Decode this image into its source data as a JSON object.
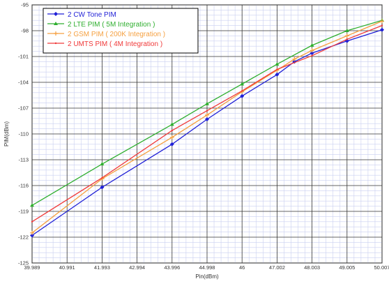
{
  "chart_data": {
    "type": "line",
    "title": "",
    "xlabel": "Pin(dBm)",
    "ylabel": "PIM(dBm)",
    "xlim": [
      39.989,
      50.007
    ],
    "ylim": [
      -125,
      -95
    ],
    "x_tick_labels": [
      "39.989",
      "40.991",
      "41.993",
      "42.994",
      "43.996",
      "44.998",
      "46",
      "47.002",
      "48.003",
      "49.005",
      "50.007"
    ],
    "y_tick_labels": [
      "-95",
      "-98",
      "-101",
      "-104",
      "-107",
      "-110",
      "-113",
      "-116",
      "-119",
      "-122",
      "-125"
    ],
    "grid": true,
    "legend_position": "top-left",
    "series": [
      {
        "name": "2 CW Tone PIM",
        "color": "#1f1fd6",
        "marker": "diamond",
        "x": [
          39.989,
          41.993,
          43.996,
          44.998,
          46,
          47.002,
          47.5,
          48.003,
          49.005,
          50.007
        ],
        "y": [
          -121.8,
          -116.2,
          -111.2,
          -108.3,
          -105.6,
          -103.1,
          -101.6,
          -100.6,
          -99.2,
          -97.9
        ]
      },
      {
        "name": "2 LTE PIM ( 5M Integration )",
        "color": "#2eae2e",
        "marker": "triangle",
        "x": [
          39.989,
          41.993,
          43.996,
          44.998,
          46,
          47.002,
          48.003,
          49.005,
          50.007
        ],
        "y": [
          -118.3,
          -113.5,
          -108.9,
          -106.5,
          -104.2,
          -101.9,
          -99.7,
          -98.0,
          -96.8
        ]
      },
      {
        "name": "2 GSM PIM ( 200K Integration )",
        "color": "#f5a040",
        "marker": "plus",
        "x": [
          39.989,
          42.0,
          43.996,
          44.998,
          46,
          47.002,
          47.5,
          48.003,
          49.005,
          50.007
        ],
        "y": [
          -121.5,
          -115.2,
          -110.4,
          -107.8,
          -105.1,
          -102.6,
          -101.3,
          -100.3,
          -98.6,
          -96.9
        ]
      },
      {
        "name": "2 UMTS PIM ( 4M Integration )",
        "color": "#f03a3a",
        "marker": "none",
        "x": [
          39.989,
          41.993,
          43.996,
          44.998,
          46,
          47.002,
          48.003,
          49.005,
          50.007
        ],
        "y": [
          -120.2,
          -115.1,
          -109.6,
          -107.3,
          -105.0,
          -102.5,
          -100.9,
          -99.0,
          -97.4
        ]
      }
    ]
  }
}
